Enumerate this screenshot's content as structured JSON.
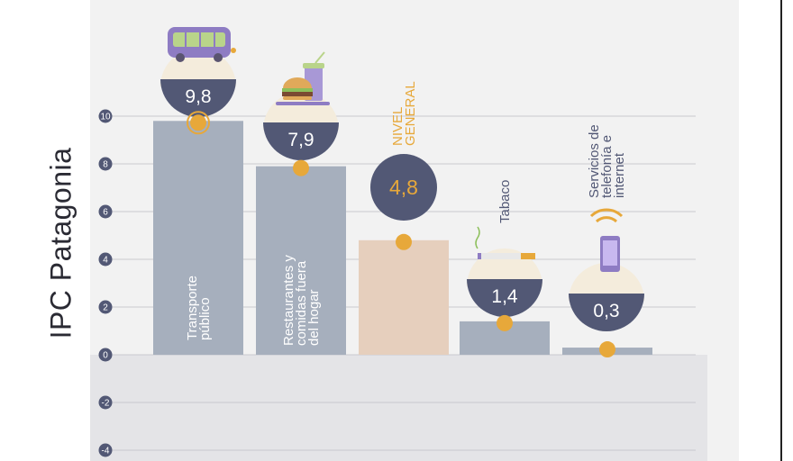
{
  "page_title": "IPC Patagonia",
  "colors": {
    "bar": "#a6afbd",
    "bar_general": "#e6cfbd",
    "bubble": "#525875",
    "accent": "#e7a83a",
    "grid": "#c9c9cf"
  },
  "chart_data": {
    "type": "bar",
    "ylim": [
      -4,
      10
    ],
    "yticks": [
      "-4",
      "-2",
      "0",
      "2",
      "4",
      "6",
      "8",
      "10"
    ],
    "grid": true,
    "categories": [
      "Transporte público",
      "Restaurantes y comidas fuera del hogar",
      "NIVEL GENERAL",
      "Tabaco",
      "Servicios de telefonía e internet"
    ],
    "values": [
      9.8,
      7.9,
      4.8,
      1.4,
      0.3
    ],
    "value_labels": [
      "9,8",
      "7,9",
      "4,8",
      "1,4",
      "0,3"
    ],
    "icons": [
      "bus-icon",
      "burger-drink-icon",
      "",
      "cigarette-icon",
      "smartphone-icon"
    ]
  }
}
